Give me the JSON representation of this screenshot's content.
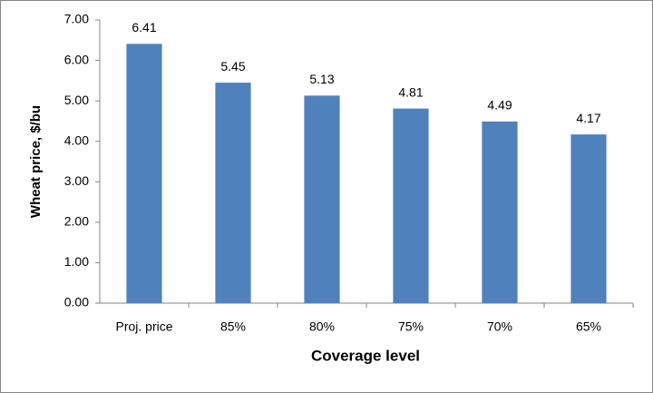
{
  "chart_data": {
    "type": "bar",
    "x_label": "Coverage level",
    "y_label": "Wheat price, $/bu",
    "categories": [
      "Proj. price",
      "85%",
      "80%",
      "75%",
      "70%",
      "65%"
    ],
    "values": [
      6.41,
      5.45,
      5.13,
      4.81,
      4.49,
      4.17
    ],
    "color": "#4f81bd",
    "ylim": [
      0,
      7
    ],
    "yticks": [
      {
        "value": 0,
        "label": "0.00"
      },
      {
        "value": 1,
        "label": "1.00"
      },
      {
        "value": 2,
        "label": "2.00"
      },
      {
        "value": 3,
        "label": "3.00"
      },
      {
        "value": 4,
        "label": "4.00"
      },
      {
        "value": 5,
        "label": "5.00"
      },
      {
        "value": 6,
        "label": "6.00"
      },
      {
        "value": 7,
        "label": "7.00"
      }
    ],
    "grid": false
  }
}
